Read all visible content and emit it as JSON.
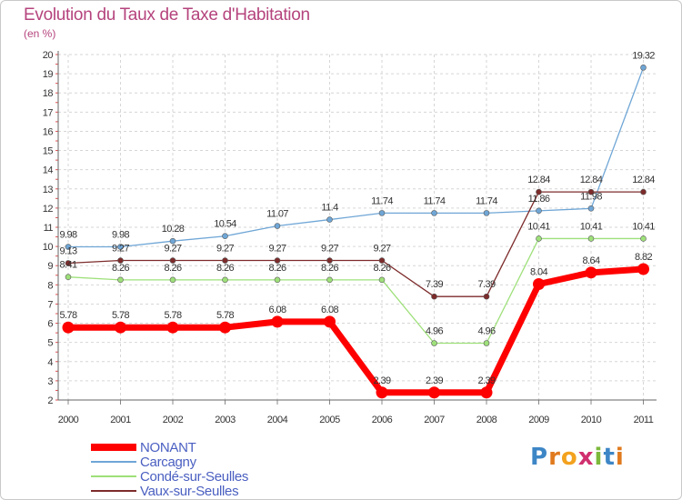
{
  "chart_data": {
    "type": "line",
    "title": "Evolution du Taux de Taxe d'Habitation",
    "subtitle": "(en %)",
    "xlabel": "",
    "ylabel": "",
    "categories": [
      "2000",
      "2001",
      "2002",
      "2003",
      "2004",
      "2005",
      "2006",
      "2007",
      "2008",
      "2009",
      "2010",
      "2011"
    ],
    "ylim": [
      2,
      20
    ],
    "yticks": [
      "2",
      "3",
      "4",
      "5",
      "6",
      "7",
      "8",
      "9",
      "10",
      "11",
      "12",
      "13",
      "14",
      "15",
      "16",
      "17",
      "18",
      "19",
      "20"
    ],
    "grid": true,
    "legend_position": "bottom-left",
    "series": [
      {
        "name": "NONANT",
        "color": "#ff0000",
        "values": [
          5.78,
          5.78,
          5.78,
          5.78,
          6.08,
          6.08,
          2.39,
          2.39,
          2.39,
          8.04,
          8.64,
          8.82
        ],
        "labels": [
          "5.78",
          "5.78",
          "5.78",
          "5.78",
          "6.08",
          "6.08",
          "2.39",
          "2.39",
          "2.39",
          "8.04",
          "8.64",
          "8.82"
        ]
      },
      {
        "name": "Carcagny",
        "color": "#6fa6d6",
        "values": [
          9.98,
          9.98,
          10.28,
          10.54,
          11.07,
          11.4,
          11.74,
          11.74,
          11.74,
          11.86,
          11.98,
          19.32
        ],
        "labels": [
          "9.98",
          "9.98",
          "10.28",
          "10.54",
          "11.07",
          "11.4",
          "11.74",
          "11.74",
          "11.74",
          "11.86",
          "11.98",
          "19.32"
        ]
      },
      {
        "name": "Condé-sur-Seulles",
        "color": "#9ee07a",
        "values": [
          8.41,
          8.26,
          8.26,
          8.26,
          8.26,
          8.26,
          8.26,
          4.96,
          4.96,
          10.41,
          10.41,
          10.41
        ],
        "labels": [
          "8.41",
          "8.26",
          "8.26",
          "8.26",
          "8.26",
          "8.26",
          "8.26",
          "4.96",
          "4.96",
          "10.41",
          "10.41",
          "10.41"
        ]
      },
      {
        "name": "Vaux-sur-Seulles",
        "color": "#7d2b2b",
        "values": [
          9.13,
          9.27,
          9.27,
          9.27,
          9.27,
          9.27,
          9.27,
          7.39,
          7.39,
          12.84,
          12.84,
          12.84
        ],
        "labels": [
          "9.13",
          "9.27",
          "9.27",
          "9.27",
          "9.27",
          "9.27",
          "9.27",
          "7.39",
          "7.39",
          "12.84",
          "12.84",
          "12.84"
        ]
      }
    ]
  },
  "logo": {
    "text": "Proxiti",
    "letters": [
      "P",
      "r",
      "o",
      "x",
      "i",
      "t",
      "i"
    ],
    "colors": [
      "#3d86c6",
      "#e07a1e",
      "#f3a21f",
      "#d0306f",
      "#7cb83a",
      "#3d86c6",
      "#e07a1e"
    ]
  }
}
